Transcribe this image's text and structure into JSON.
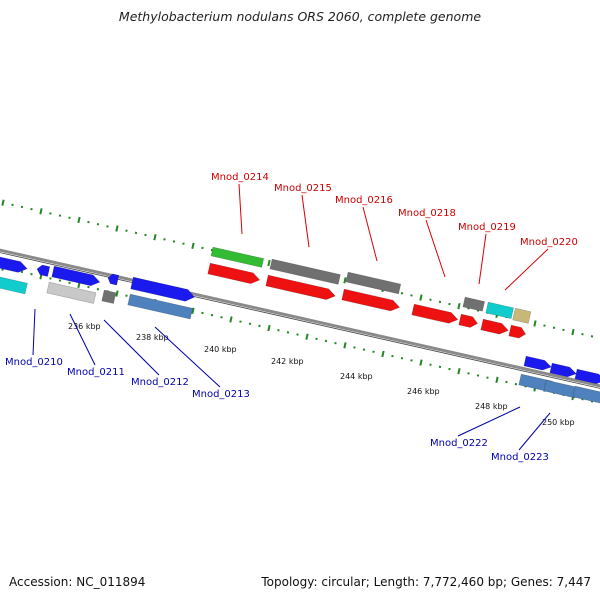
{
  "title": "Methylobacterium nodulans ORS 2060, complete genome",
  "accession": "Accession: NC_011894",
  "topology": "Topology: circular; Length: 7,772,460 bp; Genes: 7,447",
  "colors": {
    "backbone": "#8a8a8a",
    "gene_red": "#ee1111",
    "gene_blue": "#1a1aee",
    "gene_cyan": "#11cccc",
    "gene_green": "#33bb33",
    "gene_gray": "#707070",
    "gene_lightgray": "#c8c8c8",
    "gene_steel": "#4f81bd",
    "gene_khaki": "#c8b878",
    "tick_green": "#228822"
  },
  "scale_ticks": [
    "236 kbp",
    "238 kbp",
    "240 kbp",
    "242 kbp",
    "244 kbp",
    "246 kbp",
    "248 kbp",
    "250 kbp"
  ],
  "gene_labels_top": [
    "Mnod_0214",
    "Mnod_0215",
    "Mnod_0216",
    "Mnod_0218",
    "Mnod_0219",
    "Mnod_0220"
  ],
  "gene_labels_bottom": [
    "Mnod_0210",
    "Mnod_0211",
    "Mnod_0212",
    "Mnod_0213",
    "Mnod_0222",
    "Mnod_0223"
  ]
}
